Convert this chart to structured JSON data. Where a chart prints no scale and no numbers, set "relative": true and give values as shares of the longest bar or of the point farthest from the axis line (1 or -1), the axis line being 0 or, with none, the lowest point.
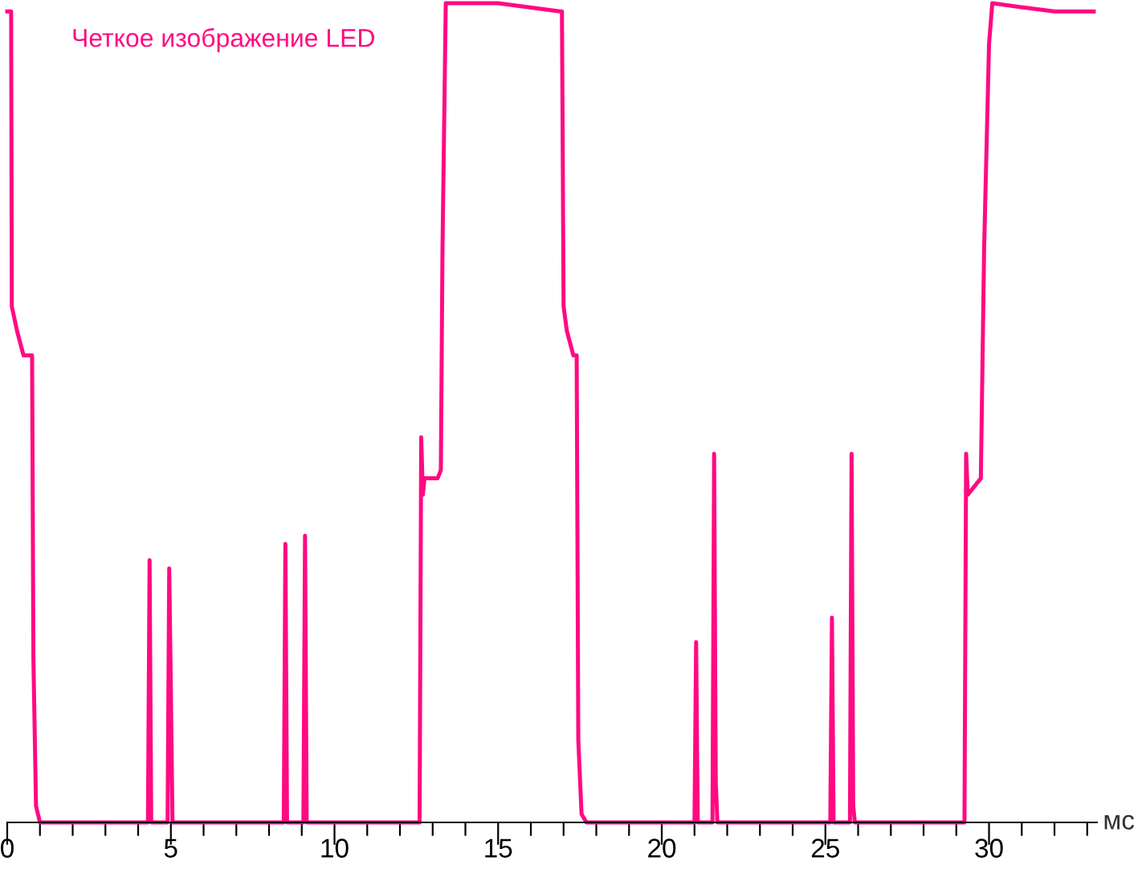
{
  "chart_data": {
    "type": "line",
    "relative": true,
    "title": "Четкое изображение LED",
    "xlabel": "мс",
    "xlim": [
      0,
      33.3
    ],
    "xticks": [
      0,
      {
        "value": 1,
        "label": null
      },
      {
        "value": 2,
        "label": null
      },
      {
        "value": 3,
        "label": null
      },
      {
        "value": 4,
        "label": null
      },
      5,
      {
        "value": 6,
        "label": null
      },
      {
        "value": 7,
        "label": null
      },
      {
        "value": 8,
        "label": null
      },
      {
        "value": 9,
        "label": null
      },
      10,
      {
        "value": 11,
        "label": null
      },
      {
        "value": 12,
        "label": null
      },
      {
        "value": 13,
        "label": null
      },
      {
        "value": 14,
        "label": null
      },
      15,
      {
        "value": 16,
        "label": null
      },
      {
        "value": 17,
        "label": null
      },
      {
        "value": 18,
        "label": null
      },
      {
        "value": 19,
        "label": null
      },
      20,
      {
        "value": 21,
        "label": null
      },
      {
        "value": 22,
        "label": null
      },
      {
        "value": 23,
        "label": null
      },
      {
        "value": 24,
        "label": null
      },
      25,
      {
        "value": 26,
        "label": null
      },
      {
        "value": 27,
        "label": null
      },
      {
        "value": 28,
        "label": null
      },
      {
        "value": 29,
        "label": null
      },
      30,
      {
        "value": 31,
        "label": null
      },
      {
        "value": 32,
        "label": null
      },
      {
        "value": 33,
        "label": null
      }
    ],
    "grid": false,
    "legend": false,
    "tick_labels": "x",
    "series": [
      {
        "color": "#ff0a82",
        "x": [
          0,
          0.12,
          0.14,
          0.3,
          0.5,
          0.76,
          0.8,
          0.88,
          1.0,
          4.3,
          4.35,
          4.4,
          4.9,
          4.95,
          5.0,
          5.05,
          8.45,
          8.5,
          8.55,
          9.05,
          9.1,
          9.15,
          12.6,
          12.65,
          12.7,
          12.75,
          13.15,
          13.25,
          13.3,
          13.4,
          15,
          16.9,
          16.95,
          17.0,
          17.1,
          17.3,
          17.4,
          17.45,
          17.55,
          17.7,
          21.0,
          21.05,
          21.1,
          21.55,
          21.6,
          21.65,
          21.7,
          25.15,
          25.2,
          25.25,
          25.75,
          25.8,
          25.85,
          25.9,
          29.25,
          29.3,
          29.35,
          29.75,
          29.85,
          30.0,
          30.1,
          31,
          32,
          33.2
        ],
        "values": [
          0.99,
          0.99,
          0.63,
          0.6,
          0.57,
          0.57,
          0.2,
          0.02,
          0,
          0,
          0.32,
          0,
          0,
          0.31,
          0.16,
          0,
          0,
          0.34,
          0,
          0,
          0.35,
          0,
          0,
          0.47,
          0.4,
          0.42,
          0.42,
          0.43,
          0.7,
          1.0,
          1.0,
          0.99,
          0.99,
          0.63,
          0.6,
          0.57,
          0.57,
          0.1,
          0.01,
          0,
          0,
          0.22,
          0,
          0,
          0.45,
          0.05,
          0,
          0,
          0.25,
          0,
          0,
          0.45,
          0.02,
          0,
          0,
          0.45,
          0.4,
          0.42,
          0.7,
          0.95,
          1.0,
          0.995,
          0.99,
          0.99
        ]
      }
    ]
  }
}
